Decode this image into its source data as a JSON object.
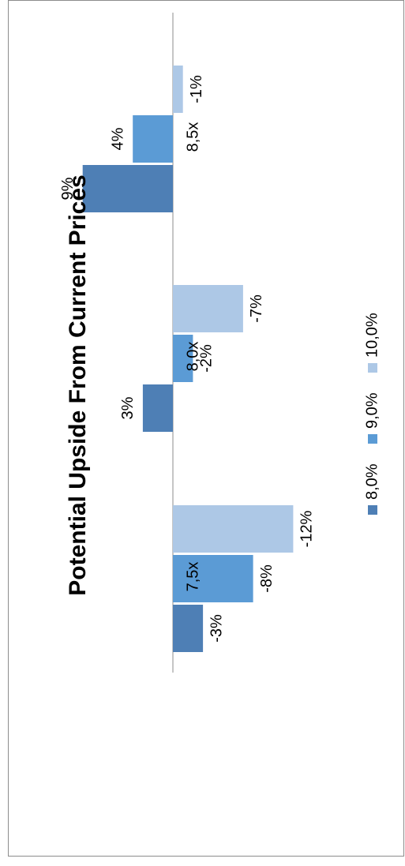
{
  "chart_data": {
    "type": "bar",
    "title": "Potential Upside From Current Prices",
    "categories": [
      "7,5x",
      "8,0x",
      "8,5x"
    ],
    "series": [
      {
        "name": "8,0%",
        "values": [
          -3,
          3,
          9
        ],
        "labels": [
          "-3%",
          "3%",
          "9%"
        ]
      },
      {
        "name": "9,0%",
        "values": [
          -8,
          -2,
          4
        ],
        "labels": [
          "-8%",
          "-2%",
          "4%"
        ]
      },
      {
        "name": "10,0%",
        "values": [
          -12,
          -7,
          -1
        ],
        "labels": [
          "-12%",
          "-7%",
          "-1%"
        ]
      }
    ],
    "colors": [
      "#4e7fb5",
      "#5b9bd5",
      "#adc8e6"
    ],
    "ylim": [
      -12,
      9
    ],
    "grid": false,
    "legend_position": "bottom",
    "orientation": "rotated 90° counter-clockwise"
  }
}
